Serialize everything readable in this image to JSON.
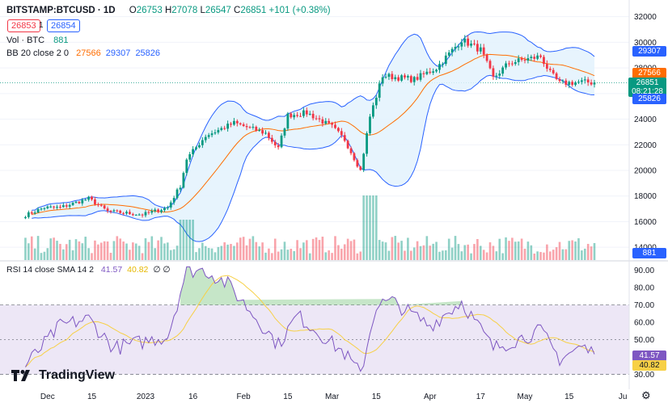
{
  "header": {
    "symbol": "BITSTAMP:BTCUSD · 1D",
    "open_label": "O",
    "open": "26753",
    "high_label": "H",
    "high": "27078",
    "low_label": "L",
    "low": "26547",
    "close_label": "C",
    "close": "26851",
    "change": "+101 (+0.38%)",
    "bid": "26853",
    "spread": "1",
    "ask": "26854"
  },
  "vol_legend": {
    "label": "Vol · BTC",
    "value": "881"
  },
  "bb_legend": {
    "label": "BB 20 close 2 0",
    "basis": "27566",
    "upper": "29307",
    "lower": "25826"
  },
  "rsi_legend": {
    "label": "RSI 14 close SMA 14 2",
    "rsi": "41.57",
    "sma": "40.82",
    "extra": "∅ ∅"
  },
  "tags": {
    "bb_upper": "29307",
    "bb_basis": "27566",
    "price": "26851",
    "countdown": "08:21:28",
    "bb_lower": "25826",
    "volume": "881",
    "rsi": "41.57",
    "rsi_sma": "40.82"
  },
  "colors": {
    "up": "#089981",
    "down": "#f23645",
    "bb": "#2962ff",
    "basis": "#ff6d00",
    "rsi": "#7e57c2",
    "rsi_sma": "#f7d046",
    "band_fill": "#e3f2fd",
    "rsi_fill": "#ede7f6"
  },
  "brand": "TradingView",
  "settings_icon": "gear-icon",
  "chart_data": {
    "type": "candlestick",
    "price_axis": {
      "ticks": [
        "32000",
        "30000",
        "28000",
        "26000",
        "24000",
        "22000",
        "20000",
        "18000",
        "16000",
        "14000"
      ],
      "range": [
        13000,
        32800
      ]
    },
    "rsi_axis": {
      "ticks": [
        "90.00",
        "80.00",
        "70.00",
        "60.00",
        "50.00",
        "40.00",
        "30.00"
      ],
      "range": [
        26,
        95
      ],
      "overbought": 70,
      "middle": 50,
      "oversold": 30
    },
    "x_ticks": [
      "Dec",
      "15",
      "2023",
      "16",
      "Feb",
      "15",
      "Mar",
      "15",
      "Apr",
      "17",
      "May",
      "15",
      "Ju"
    ],
    "anchors": [
      {
        "date": "2022-11-24",
        "close": 16500
      },
      {
        "date": "2022-11-30",
        "close": 17100
      },
      {
        "date": "2022-12-05",
        "close": 17100
      },
      {
        "date": "2022-12-14",
        "close": 17800
      },
      {
        "date": "2022-12-20",
        "close": 16800
      },
      {
        "date": "2022-12-31",
        "close": 16550
      },
      {
        "date": "2023-01-08",
        "close": 17100
      },
      {
        "date": "2023-01-12",
        "close": 18800
      },
      {
        "date": "2023-01-14",
        "close": 20900
      },
      {
        "date": "2023-01-20",
        "close": 22700
      },
      {
        "date": "2023-01-29",
        "close": 23700
      },
      {
        "date": "2023-02-08",
        "close": 22900
      },
      {
        "date": "2023-02-12",
        "close": 21700
      },
      {
        "date": "2023-02-15",
        "close": 24300
      },
      {
        "date": "2023-02-21",
        "close": 24500
      },
      {
        "date": "2023-03-01",
        "close": 23400
      },
      {
        "date": "2023-03-05",
        "close": 22400
      },
      {
        "date": "2023-03-10",
        "close": 20000
      },
      {
        "date": "2023-03-13",
        "close": 24200
      },
      {
        "date": "2023-03-17",
        "close": 27400
      },
      {
        "date": "2023-03-27",
        "close": 27100
      },
      {
        "date": "2023-04-03",
        "close": 28000
      },
      {
        "date": "2023-04-11",
        "close": 30200
      },
      {
        "date": "2023-04-17",
        "close": 29400
      },
      {
        "date": "2023-04-21",
        "close": 27200
      },
      {
        "date": "2023-04-26",
        "close": 28400
      },
      {
        "date": "2023-05-06",
        "close": 28900
      },
      {
        "date": "2023-05-09",
        "close": 27600
      },
      {
        "date": "2023-05-12",
        "close": 26800
      },
      {
        "date": "2023-05-19",
        "close": 26900
      },
      {
        "date": "2023-05-23",
        "close": 26851
      }
    ],
    "volume_peaks": [
      {
        "date": "2023-01-14",
        "level": "high"
      },
      {
        "date": "2023-03-13",
        "level": "highest"
      }
    ],
    "rsi_anchors": [
      {
        "date": "2022-11-24",
        "rsi": 35
      },
      {
        "date": "2022-12-05",
        "rsi": 58
      },
      {
        "date": "2022-12-14",
        "rsi": 62
      },
      {
        "date": "2022-12-22",
        "rsi": 45
      },
      {
        "date": "2023-01-08",
        "rsi": 52
      },
      {
        "date": "2023-01-14",
        "rsi": 90
      },
      {
        "date": "2023-01-20",
        "rsi": 90
      },
      {
        "date": "2023-01-27",
        "rsi": 82
      },
      {
        "date": "2023-02-08",
        "rsi": 56
      },
      {
        "date": "2023-02-12",
        "rsi": 47
      },
      {
        "date": "2023-02-18",
        "rsi": 64
      },
      {
        "date": "2023-03-05",
        "rsi": 42
      },
      {
        "date": "2023-03-10",
        "rsi": 30
      },
      {
        "date": "2023-03-15",
        "rsi": 70
      },
      {
        "date": "2023-03-20",
        "rsi": 72
      },
      {
        "date": "2023-04-01",
        "rsi": 58
      },
      {
        "date": "2023-04-11",
        "rsi": 72
      },
      {
        "date": "2023-04-21",
        "rsi": 45
      },
      {
        "date": "2023-05-06",
        "rsi": 55
      },
      {
        "date": "2023-05-12",
        "rsi": 39
      },
      {
        "date": "2023-05-19",
        "rsi": 46
      },
      {
        "date": "2023-05-23",
        "rsi": 41.57
      }
    ]
  }
}
